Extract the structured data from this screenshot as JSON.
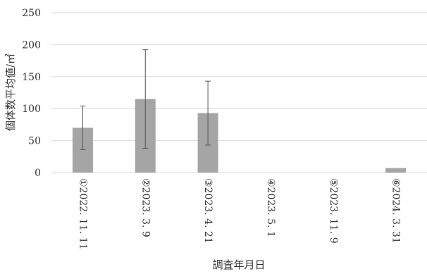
{
  "chart_data": {
    "type": "bar",
    "categories": [
      "①2022.11.11",
      "②2023.3.9",
      "③2023.4.21",
      "④2023.5.1",
      "⑤2023.11.9",
      "⑥2024.3.31"
    ],
    "category_display": [
      "①2022. 11. 11",
      "②2023. 3. 9",
      "③2023. 4. 21",
      "④2023. 5. 1",
      "⑤2023. 11. 9",
      "⑥2024. 3. 31"
    ],
    "values": [
      70,
      115,
      93,
      0,
      0,
      7
    ],
    "error_bars": [
      34,
      77,
      50,
      null,
      null,
      null
    ],
    "xlabel": "調査年月日",
    "ylabel": "個体数平均値/㎡",
    "ylim": [
      0,
      250
    ],
    "yticks": [
      0,
      50,
      100,
      150,
      200,
      250
    ],
    "grid": true,
    "bar_color": "#a5a5a5",
    "error_bar_color": "#555555",
    "grid_color": "#d9d9d9"
  }
}
